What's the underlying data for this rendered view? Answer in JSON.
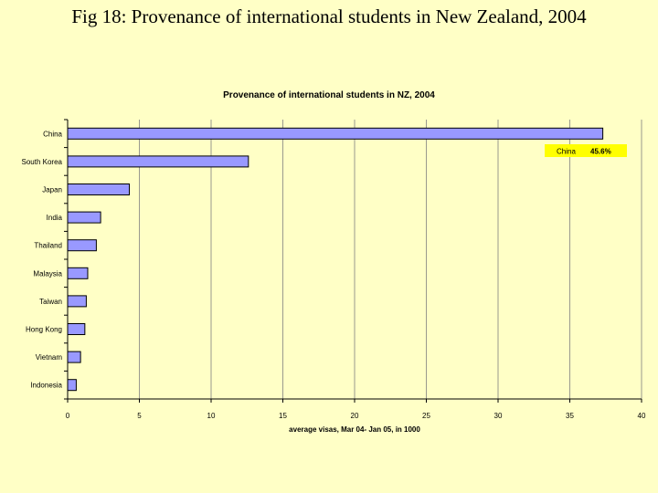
{
  "slide": {
    "title": "Fig 18: Provenance of international students in New Zealand, 2004"
  },
  "colors": {
    "background": "#ffffc6",
    "bar_fill": "#9999ff",
    "bar_stroke": "#000000",
    "callout_fill": "#ffff00",
    "grid": "#808080"
  },
  "chart_data": {
    "type": "bar",
    "orientation": "horizontal",
    "title": "Provenance of international students in NZ, 2004",
    "xlabel": "average visas, Mar 04- Jan 05, in 1000",
    "ylabel": "",
    "categories": [
      "China",
      "South Korea",
      "Japan",
      "India",
      "Thailand",
      "Malaysia",
      "Taiwan",
      "Hong Kong",
      "Vietnam",
      "Indonesia"
    ],
    "values": [
      37.3,
      12.6,
      4.3,
      2.3,
      2.0,
      1.4,
      1.3,
      1.2,
      0.9,
      0.6
    ],
    "xlim": [
      0,
      40
    ],
    "xticks": [
      0,
      5,
      10,
      15,
      20,
      25,
      30,
      35,
      40
    ],
    "grid": "vertical",
    "annotation": {
      "label": "China",
      "value": "45.6%"
    }
  }
}
